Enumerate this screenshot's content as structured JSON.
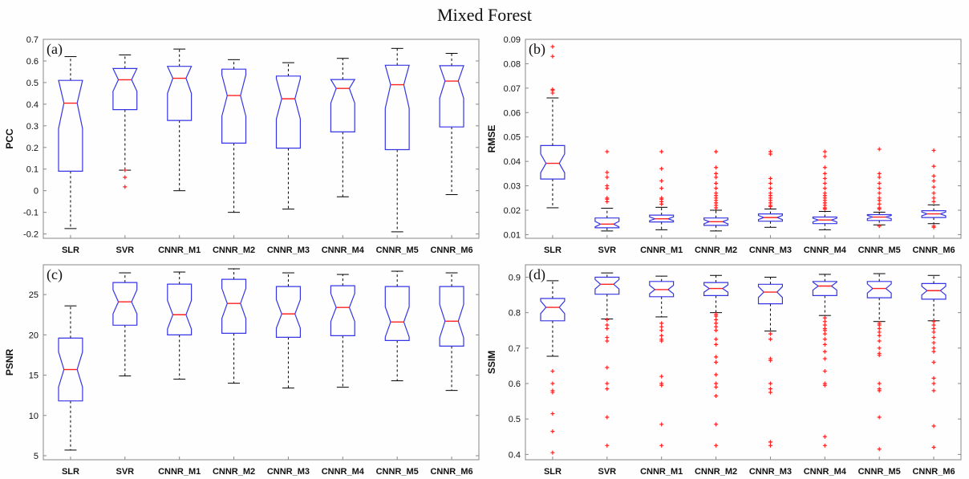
{
  "title": "Mixed Forest",
  "colors": {
    "box": "#3535e6",
    "median": "#ff2020",
    "outlier": "#ff2020",
    "whisker": "#000000",
    "axis": "#888888"
  },
  "chart_data": [
    {
      "type": "box",
      "panel_label": "(a)",
      "ylabel": "PCC",
      "ylim": [
        -0.22,
        0.7
      ],
      "yticks": [
        -0.2,
        -0.1,
        0,
        0.1,
        0.2,
        0.3,
        0.4,
        0.5,
        0.6,
        0.7
      ],
      "ytick_labels": [
        "-0.2",
        "-0.1",
        "0",
        "0.1",
        "0.2",
        "0.3",
        "0.4",
        "0.5",
        "0.6",
        "0.7"
      ],
      "categories": [
        "SLR",
        "SVR",
        "CNNR_M1",
        "CNNR_M2",
        "CNNR_M3",
        "CNNR_M4",
        "CNNR_M5",
        "CNNR_M6"
      ],
      "boxes": [
        {
          "whislo": -0.175,
          "q1": 0.09,
          "med": 0.405,
          "q3": 0.51,
          "whishi": 0.62,
          "fliers": []
        },
        {
          "whislo": 0.095,
          "q1": 0.375,
          "med": 0.513,
          "q3": 0.565,
          "whishi": 0.628,
          "fliers": [
            0.095,
            0.062,
            0.018
          ]
        },
        {
          "whislo": 0.0,
          "q1": 0.325,
          "med": 0.52,
          "q3": 0.575,
          "whishi": 0.655,
          "fliers": []
        },
        {
          "whislo": -0.1,
          "q1": 0.22,
          "med": 0.44,
          "q3": 0.562,
          "whishi": 0.606,
          "fliers": []
        },
        {
          "whislo": -0.085,
          "q1": 0.197,
          "med": 0.425,
          "q3": 0.53,
          "whishi": 0.592,
          "fliers": []
        },
        {
          "whislo": -0.028,
          "q1": 0.272,
          "med": 0.473,
          "q3": 0.514,
          "whishi": 0.612,
          "fliers": []
        },
        {
          "whislo": -0.19,
          "q1": 0.19,
          "med": 0.49,
          "q3": 0.58,
          "whishi": 0.658,
          "fliers": []
        },
        {
          "whislo": -0.018,
          "q1": 0.295,
          "med": 0.507,
          "q3": 0.578,
          "whishi": 0.635,
          "fliers": []
        }
      ]
    },
    {
      "type": "box",
      "panel_label": "(b)",
      "ylabel": "RMSE",
      "ylim": [
        0.0085,
        0.09
      ],
      "yticks": [
        0.01,
        0.02,
        0.03,
        0.04,
        0.05,
        0.06,
        0.07,
        0.08,
        0.09
      ],
      "ytick_labels": [
        "0.01",
        "0.02",
        "0.03",
        "0.04",
        "0.05",
        "0.06",
        "0.07",
        "0.08",
        "0.09"
      ],
      "categories": [
        "SLR",
        "SVR",
        "CNNR_M1",
        "CNNR_M2",
        "CNNR_M3",
        "CNNR_M4",
        "CNNR_M5",
        "CNNR_M6"
      ],
      "boxes": [
        {
          "whislo": 0.021,
          "q1": 0.0328,
          "med": 0.0392,
          "q3": 0.0465,
          "whishi": 0.066,
          "fliers": [
            0.068,
            0.069,
            0.0695,
            0.083,
            0.087
          ]
        },
        {
          "whislo": 0.0115,
          "q1": 0.0128,
          "med": 0.0143,
          "q3": 0.0168,
          "whishi": 0.0208,
          "fliers": [
            0.0235,
            0.0245,
            0.025,
            0.029,
            0.03,
            0.0335,
            0.0355,
            0.044
          ]
        },
        {
          "whislo": 0.012,
          "q1": 0.0152,
          "med": 0.0165,
          "q3": 0.018,
          "whishi": 0.0212,
          "fliers": [
            0.0225,
            0.0235,
            0.0245,
            0.025,
            0.029,
            0.032,
            0.037,
            0.044
          ]
        },
        {
          "whislo": 0.0115,
          "q1": 0.0138,
          "med": 0.0153,
          "q3": 0.0168,
          "whishi": 0.02,
          "fliers": [
            0.021,
            0.022,
            0.023,
            0.024,
            0.025,
            0.026,
            0.027,
            0.029,
            0.031,
            0.0335,
            0.035,
            0.0375,
            0.044
          ]
        },
        {
          "whislo": 0.013,
          "q1": 0.0155,
          "med": 0.017,
          "q3": 0.0185,
          "whishi": 0.0205,
          "fliers": [
            0.0215,
            0.022,
            0.023,
            0.024,
            0.025,
            0.026,
            0.027,
            0.029,
            0.031,
            0.033,
            0.043,
            0.044
          ]
        },
        {
          "whislo": 0.012,
          "q1": 0.0145,
          "med": 0.016,
          "q3": 0.0172,
          "whishi": 0.0195,
          "fliers": [
            0.0205,
            0.021,
            0.022,
            0.023,
            0.024,
            0.025,
            0.026,
            0.027,
            0.029,
            0.031,
            0.033,
            0.035,
            0.0375,
            0.042,
            0.044
          ]
        },
        {
          "whislo": 0.014,
          "q1": 0.0158,
          "med": 0.0172,
          "q3": 0.0182,
          "whishi": 0.0192,
          "fliers": [
            0.0135,
            0.0205,
            0.021,
            0.0225,
            0.024,
            0.025,
            0.027,
            0.029,
            0.031,
            0.0335,
            0.035,
            0.045
          ]
        },
        {
          "whislo": 0.0145,
          "q1": 0.017,
          "med": 0.0185,
          "q3": 0.0198,
          "whishi": 0.0222,
          "fliers": [
            0.013,
            0.0135,
            0.0235,
            0.025,
            0.027,
            0.0295,
            0.032,
            0.034,
            0.038,
            0.0445
          ]
        }
      ]
    },
    {
      "type": "box",
      "panel_label": "(c)",
      "ylabel": "PSNR",
      "ylim": [
        4.5,
        28.7
      ],
      "yticks": [
        5,
        10,
        15,
        20,
        25
      ],
      "ytick_labels": [
        "5",
        "10",
        "15",
        "20",
        "25"
      ],
      "categories": [
        "SLR",
        "SVR",
        "CNNR_M1",
        "CNNR_M2",
        "CNNR_M3",
        "CNNR_M4",
        "CNNR_M5",
        "CNNR_M6"
      ],
      "boxes": [
        {
          "whislo": 5.7,
          "q1": 11.8,
          "med": 15.7,
          "q3": 19.6,
          "whishi": 23.6,
          "fliers": []
        },
        {
          "whislo": 14.9,
          "q1": 21.2,
          "med": 24.1,
          "q3": 26.5,
          "whishi": 27.7,
          "fliers": []
        },
        {
          "whislo": 14.5,
          "q1": 20.0,
          "med": 22.5,
          "q3": 26.3,
          "whishi": 27.8,
          "fliers": []
        },
        {
          "whislo": 14.0,
          "q1": 20.2,
          "med": 23.9,
          "q3": 26.9,
          "whishi": 28.2,
          "fliers": []
        },
        {
          "whislo": 13.4,
          "q1": 19.7,
          "med": 22.6,
          "q3": 26.0,
          "whishi": 27.7,
          "fliers": []
        },
        {
          "whislo": 13.5,
          "q1": 19.9,
          "med": 23.4,
          "q3": 26.1,
          "whishi": 27.5,
          "fliers": []
        },
        {
          "whislo": 14.3,
          "q1": 19.3,
          "med": 21.6,
          "q3": 26.0,
          "whishi": 27.9,
          "fliers": []
        },
        {
          "whislo": 13.1,
          "q1": 18.6,
          "med": 21.7,
          "q3": 26.0,
          "whishi": 27.7,
          "fliers": []
        }
      ]
    },
    {
      "type": "box",
      "panel_label": "(d)",
      "ylabel": "SSIM",
      "ylim": [
        0.385,
        0.935
      ],
      "yticks": [
        0.4,
        0.5,
        0.6,
        0.7,
        0.8,
        0.9
      ],
      "ytick_labels": [
        "0.4",
        "0.5",
        "0.6",
        "0.7",
        "0.8",
        "0.9"
      ],
      "categories": [
        "SLR",
        "SVR",
        "CNNR_M1",
        "CNNR_M2",
        "CNNR_M3",
        "CNNR_M4",
        "CNNR_M5",
        "CNNR_M6"
      ],
      "boxes": [
        {
          "whislo": 0.677,
          "q1": 0.777,
          "med": 0.815,
          "q3": 0.84,
          "whishi": 0.89,
          "fliers": [
            0.405,
            0.465,
            0.515,
            0.575,
            0.58,
            0.6,
            0.635
          ]
        },
        {
          "whislo": 0.782,
          "q1": 0.852,
          "med": 0.88,
          "q3": 0.9,
          "whishi": 0.912,
          "fliers": [
            0.425,
            0.505,
            0.585,
            0.6,
            0.645,
            0.72,
            0.73,
            0.755,
            0.765,
            0.78
          ]
        },
        {
          "whislo": 0.788,
          "q1": 0.845,
          "med": 0.865,
          "q3": 0.888,
          "whishi": 0.903,
          "fliers": [
            0.425,
            0.485,
            0.595,
            0.6,
            0.62,
            0.72,
            0.725,
            0.735,
            0.75,
            0.76,
            0.77
          ]
        },
        {
          "whislo": 0.8,
          "q1": 0.848,
          "med": 0.868,
          "q3": 0.885,
          "whishi": 0.905,
          "fliers": [
            0.425,
            0.485,
            0.565,
            0.59,
            0.6,
            0.625,
            0.66,
            0.675,
            0.71,
            0.725,
            0.75,
            0.76,
            0.77,
            0.78,
            0.79,
            0.795
          ]
        },
        {
          "whislo": 0.748,
          "q1": 0.825,
          "med": 0.858,
          "q3": 0.88,
          "whishi": 0.9,
          "fliers": [
            0.425,
            0.435,
            0.575,
            0.585,
            0.6,
            0.665,
            0.67,
            0.725,
            0.74
          ]
        },
        {
          "whislo": 0.792,
          "q1": 0.848,
          "med": 0.875,
          "q3": 0.888,
          "whishi": 0.908,
          "fliers": [
            0.425,
            0.45,
            0.595,
            0.6,
            0.635,
            0.67,
            0.69,
            0.71,
            0.725,
            0.74,
            0.75,
            0.755,
            0.765,
            0.775,
            0.785
          ]
        },
        {
          "whislo": 0.775,
          "q1": 0.842,
          "med": 0.868,
          "q3": 0.888,
          "whishi": 0.91,
          "fliers": [
            0.415,
            0.505,
            0.58,
            0.585,
            0.6,
            0.68,
            0.685,
            0.7,
            0.72,
            0.735,
            0.745,
            0.755,
            0.765,
            0.77
          ]
        },
        {
          "whislo": 0.777,
          "q1": 0.838,
          "med": 0.862,
          "q3": 0.882,
          "whishi": 0.905,
          "fliers": [
            0.42,
            0.48,
            0.58,
            0.6,
            0.615,
            0.66,
            0.69,
            0.7,
            0.715,
            0.73,
            0.745,
            0.755,
            0.765,
            0.775
          ]
        }
      ]
    }
  ]
}
